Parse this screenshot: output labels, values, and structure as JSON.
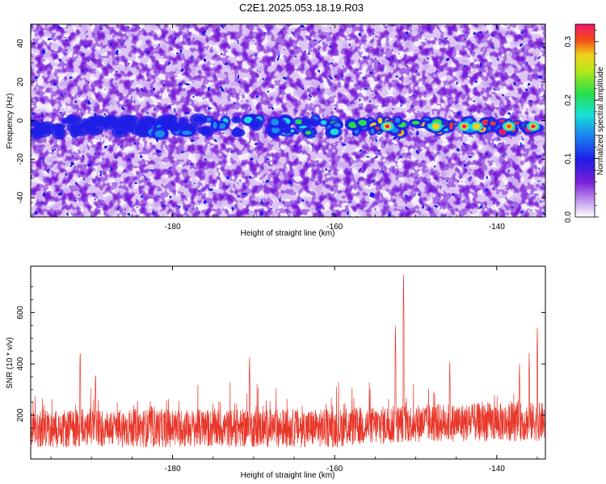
{
  "title": "C2E1.2025.053.18.19.R03",
  "chart_data": [
    {
      "type": "heatmap",
      "xlabel": "Height of straight line (km)",
      "ylabel": "Frequency (Hz)",
      "xlim": [
        -197.5,
        -134
      ],
      "ylim": [
        -50,
        50
      ],
      "xticks": [
        -180,
        -160,
        -140
      ],
      "yticks": [
        -40,
        -20,
        0,
        20,
        40
      ],
      "colorbar": {
        "label": "Normalized spectral amplitude",
        "range": [
          0,
          0.33
        ],
        "ticks": [
          "0.0",
          "0.1",
          "0.2",
          "0.3"
        ],
        "tick_values": [
          0,
          0.1,
          0.2,
          0.3
        ],
        "colormap": "rainbow (white-violet-blue-cyan-green-yellow-red-magenta)"
      },
      "ridge": {
        "description": "band of high amplitude near 0 Hz, strengthening toward right",
        "x_start": -197.5,
        "x_end": -134,
        "center_hz": -3,
        "peak_amplitude": 0.3
      },
      "grid": false
    },
    {
      "type": "line",
      "xlabel": "Height of straight line (km)",
      "ylabel": "SNR (10 * v/v)",
      "xlim": [
        -197.5,
        -134
      ],
      "ylim": [
        30,
        780
      ],
      "xticks": [
        -180,
        -160,
        -140
      ],
      "yticks": [
        200,
        400,
        600
      ],
      "series": [
        {
          "color": "#e8372a",
          "baseline": [
            [
              -197.5,
              150
            ],
            [
              -160,
              150
            ],
            [
              -150,
              170
            ],
            [
              -134,
              175
            ]
          ],
          "notable_peaks": [
            [
              -191.4,
              460
            ],
            [
              -189.5,
              375
            ],
            [
              -170.5,
              430
            ],
            [
              -152.5,
              560
            ],
            [
              -151.5,
              770
            ],
            [
              -145.8,
              410
            ],
            [
              -137.2,
              400
            ],
            [
              -136.0,
              450
            ],
            [
              -135.0,
              545
            ]
          ]
        }
      ],
      "grid": false
    }
  ]
}
